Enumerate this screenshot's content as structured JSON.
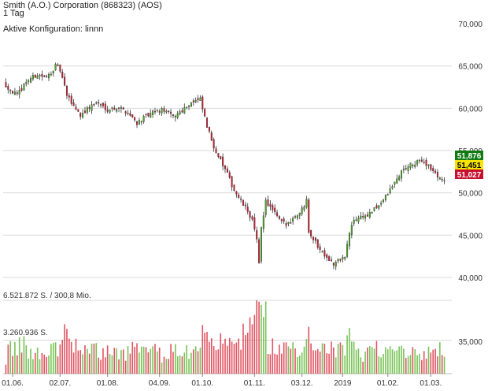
{
  "header": {
    "title": "Smith (A.O.) Corporation (868323) (AOS)",
    "interval": "1 Tag",
    "config": "Aktive Konfiguration: linnn"
  },
  "volume_labels": {
    "max": "6.521.872 S. / 300,8 Mio.",
    "mid": "3.260.936 S."
  },
  "price_badges": {
    "high": "51,876",
    "close": "51,451",
    "low": "51,027"
  },
  "colors": {
    "up": "#4caf1f",
    "down": "#d7192c",
    "high_badge": "#117a11",
    "close_badge": "#f5e400",
    "low_badge": "#c8102e"
  },
  "chart_data": {
    "type": "candlestick",
    "title": "Smith (A.O.) Corporation (868323) (AOS)",
    "price_axis": {
      "range": [
        38500,
        71500
      ],
      "ticks": [
        40000,
        45000,
        50000,
        55000,
        60000,
        65000,
        70000
      ],
      "tick_labels": [
        "40,000",
        "45,000",
        "50,000",
        "55,000",
        "60,000",
        "65,000",
        "70,000"
      ]
    },
    "volume_axis": {
      "max": 6521872,
      "ticks": [
        35000
      ],
      "tick_labels": [
        "35,000"
      ]
    },
    "x_axis": {
      "tick_labels": [
        "01.06.",
        "02.07.",
        "01.08.",
        "04.09.",
        "01.10.",
        "01.11.",
        "03.12.",
        "2019",
        "01.02.",
        "01.03."
      ],
      "tick_index": [
        3,
        24,
        45,
        68,
        87,
        110,
        131,
        149,
        169,
        188
      ]
    },
    "price_path": [
      [
        0,
        62700
      ],
      [
        5,
        61500
      ],
      [
        9,
        63200
      ],
      [
        14,
        64000
      ],
      [
        18,
        63600
      ],
      [
        22,
        65000
      ],
      [
        24,
        64500
      ],
      [
        27,
        61500
      ],
      [
        30,
        60300
      ],
      [
        33,
        59200
      ],
      [
        37,
        60100
      ],
      [
        40,
        60700
      ],
      [
        45,
        59900
      ],
      [
        50,
        60100
      ],
      [
        54,
        59500
      ],
      [
        58,
        58300
      ],
      [
        62,
        59000
      ],
      [
        66,
        59600
      ],
      [
        70,
        59800
      ],
      [
        74,
        59000
      ],
      [
        78,
        59800
      ],
      [
        82,
        60700
      ],
      [
        86,
        61000
      ],
      [
        89,
        57800
      ],
      [
        92,
        55500
      ],
      [
        95,
        53800
      ],
      [
        98,
        52200
      ],
      [
        101,
        50300
      ],
      [
        104,
        49000
      ],
      [
        107,
        47800
      ],
      [
        109,
        46800
      ],
      [
        111,
        44300
      ],
      [
        112,
        41600
      ],
      [
        113,
        46000
      ],
      [
        115,
        49000
      ],
      [
        118,
        47900
      ],
      [
        121,
        46800
      ],
      [
        124,
        46200
      ],
      [
        127,
        47000
      ],
      [
        130,
        47700
      ],
      [
        132,
        48500
      ],
      [
        133,
        49500
      ],
      [
        134,
        45500
      ],
      [
        136,
        44600
      ],
      [
        139,
        43300
      ],
      [
        142,
        42500
      ],
      [
        145,
        41500
      ],
      [
        148,
        42200
      ],
      [
        150,
        42400
      ],
      [
        152,
        45200
      ],
      [
        154,
        46800
      ],
      [
        157,
        47200
      ],
      [
        160,
        47300
      ],
      [
        163,
        48000
      ],
      [
        166,
        48900
      ],
      [
        169,
        49900
      ],
      [
        172,
        51200
      ],
      [
        175,
        52500
      ],
      [
        178,
        53200
      ],
      [
        181,
        53400
      ],
      [
        184,
        53900
      ],
      [
        187,
        53200
      ],
      [
        190,
        52200
      ],
      [
        192,
        51800
      ],
      [
        194,
        51451
      ]
    ],
    "last": {
      "high": 51876,
      "close": 51451,
      "low": 51027
    }
  }
}
